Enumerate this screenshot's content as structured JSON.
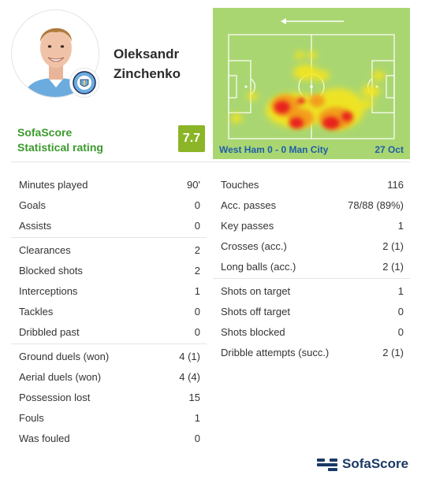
{
  "player": {
    "first_name": "Oleksandr",
    "last_name": "Zinchenko",
    "photo_icon": "player-portrait-icon",
    "club_badge_icon": "manchester-city-badge-icon",
    "club_badge_text": "MANCHESTER CITY"
  },
  "rating": {
    "label_line1": "SofaScore",
    "label_line2": "Statistical rating",
    "value": "7.7",
    "badge_color": "#8bb526"
  },
  "heatmap": {
    "match": "West Ham 0 - 0 Man City",
    "date": "27 Oct",
    "direction_icon": "arrow-left-icon",
    "pitch_color": "#aad672",
    "hot_color": "#e8231f",
    "warm_color": "#f5e51d"
  },
  "stats_left": [
    [
      {
        "label": "Minutes played",
        "value": "90'"
      },
      {
        "label": "Goals",
        "value": "0"
      },
      {
        "label": "Assists",
        "value": "0"
      }
    ],
    [
      {
        "label": "Clearances",
        "value": "2"
      },
      {
        "label": "Blocked shots",
        "value": "2"
      },
      {
        "label": "Interceptions",
        "value": "1"
      },
      {
        "label": "Tackles",
        "value": "0"
      },
      {
        "label": "Dribbled past",
        "value": "0"
      }
    ],
    [
      {
        "label": "Ground duels (won)",
        "value": "4 (1)"
      },
      {
        "label": "Aerial duels (won)",
        "value": "4 (4)"
      },
      {
        "label": "Possession lost",
        "value": "15"
      },
      {
        "label": "Fouls",
        "value": "1"
      },
      {
        "label": "Was fouled",
        "value": "0"
      }
    ]
  ],
  "stats_right": [
    [
      {
        "label": "Touches",
        "value": "116"
      },
      {
        "label": "Acc. passes",
        "value": "78/88 (89%)"
      },
      {
        "label": "Key passes",
        "value": "1"
      },
      {
        "label": "Crosses (acc.)",
        "value": "2 (1)"
      },
      {
        "label": "Long balls (acc.)",
        "value": "2 (1)"
      }
    ],
    [
      {
        "label": "Shots on target",
        "value": "1"
      },
      {
        "label": "Shots off target",
        "value": "0"
      },
      {
        "label": "Shots blocked",
        "value": "0"
      },
      {
        "label": "Dribble attempts (succ.)",
        "value": "2 (1)"
      }
    ]
  ],
  "footer": {
    "brand": "SofaScore",
    "brand_icon": "sofascore-logo-icon",
    "brand_color": "#1a3a66"
  }
}
